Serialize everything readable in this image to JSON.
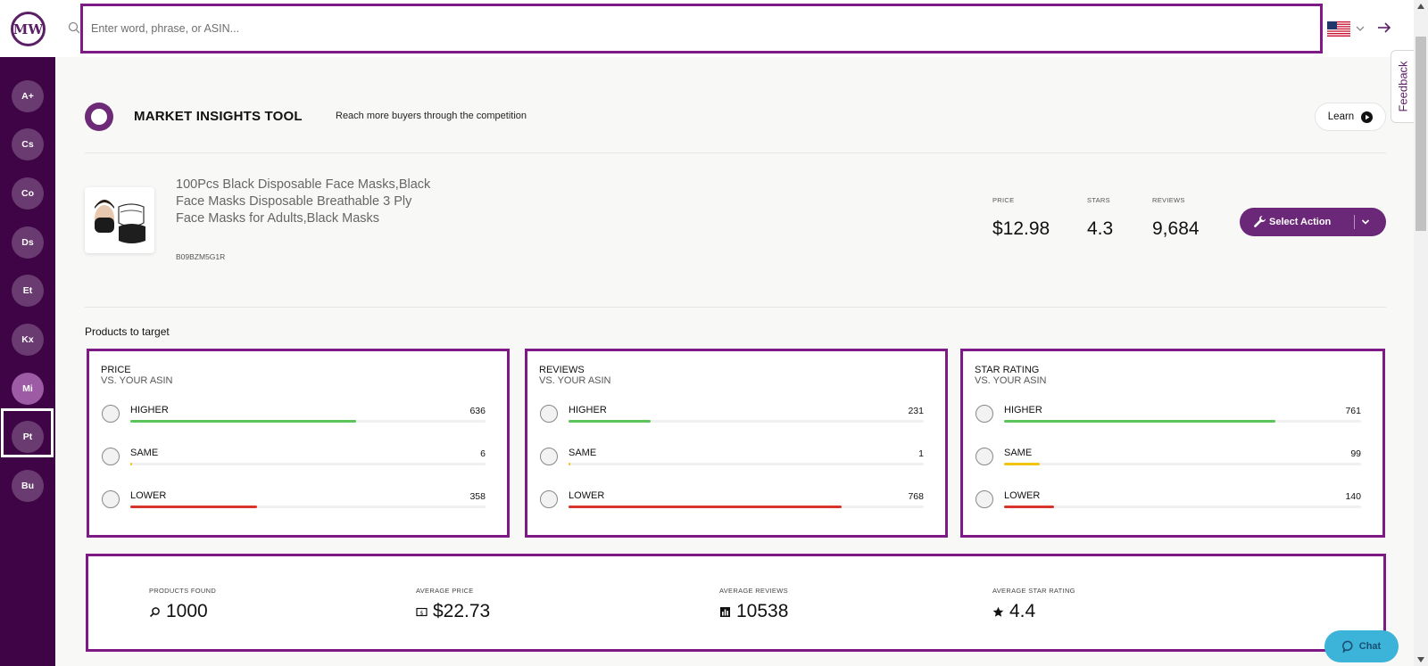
{
  "topbar": {
    "logo_text": "MW",
    "search_placeholder": "Enter word, phrase, or ASIN...",
    "flag_icon": "us-flag-icon"
  },
  "sidebar": {
    "items": [
      {
        "label": "A+",
        "active": false
      },
      {
        "label": "Cs",
        "active": false
      },
      {
        "label": "Co",
        "active": false
      },
      {
        "label": "Ds",
        "active": false
      },
      {
        "label": "Et",
        "active": false
      },
      {
        "label": "Kx",
        "active": false
      },
      {
        "label": "Mi",
        "active": true
      },
      {
        "label": "Pt",
        "active": false
      },
      {
        "label": "Bu",
        "active": false
      }
    ]
  },
  "feedback_label": "Feedback",
  "header": {
    "title": "MARKET INSIGHTS TOOL",
    "subtitle": "Reach more buyers through the competition",
    "learn_label": "Learn"
  },
  "product": {
    "title": "100Pcs Black Disposable Face Masks,Black Face Masks Disposable Breathable 3 Ply Face Masks for Adults,Black Masks",
    "asin": "B09BZM5G1R",
    "price_label": "PRICE",
    "price": "$12.98",
    "stars_label": "STARS",
    "stars": "4.3",
    "reviews_label": "REVIEWS",
    "reviews": "9,684",
    "action_label": "Select Action"
  },
  "targets_title": "Products to target",
  "cards": [
    {
      "label": "PRICE",
      "sub": "VS. YOUR ASIN",
      "rows": [
        {
          "label": "HIGHER",
          "count": "636",
          "fraction": 0.636,
          "color": "#5cc45a"
        },
        {
          "label": "SAME",
          "count": "6",
          "fraction": 0.006,
          "color": "#f1c40f"
        },
        {
          "label": "LOWER",
          "count": "358",
          "fraction": 0.358,
          "color": "#d9342b"
        }
      ]
    },
    {
      "label": "REVIEWS",
      "sub": "VS. YOUR ASIN",
      "rows": [
        {
          "label": "HIGHER",
          "count": "231",
          "fraction": 0.231,
          "color": "#5cc45a"
        },
        {
          "label": "SAME",
          "count": "1",
          "fraction": 0.001,
          "color": "#f1c40f"
        },
        {
          "label": "LOWER",
          "count": "768",
          "fraction": 0.768,
          "color": "#d9342b"
        }
      ]
    },
    {
      "label": "STAR RATING",
      "sub": "VS. YOUR ASIN",
      "rows": [
        {
          "label": "HIGHER",
          "count": "761",
          "fraction": 0.761,
          "color": "#5cc45a"
        },
        {
          "label": "SAME",
          "count": "99",
          "fraction": 0.099,
          "color": "#f1c40f"
        },
        {
          "label": "LOWER",
          "count": "140",
          "fraction": 0.14,
          "color": "#d9342b"
        }
      ]
    }
  ],
  "summary": [
    {
      "label": "PRODUCTS FOUND",
      "value": "1000",
      "icon": "search-icon"
    },
    {
      "label": "AVERAGE PRICE",
      "value": "$22.73",
      "icon": "dollar-icon"
    },
    {
      "label": "AVERAGE REVIEWS",
      "value": "10538",
      "icon": "bar-chart-icon"
    },
    {
      "label": "AVERAGE STAR RATING",
      "value": "4.4",
      "icon": "star-icon"
    }
  ],
  "chat_label": "Chat",
  "colors": {
    "brand": "#5b1f66",
    "sidebar": "#3f0445",
    "highlight_border": "#7e1a86",
    "chat": "#3cb3d8"
  }
}
